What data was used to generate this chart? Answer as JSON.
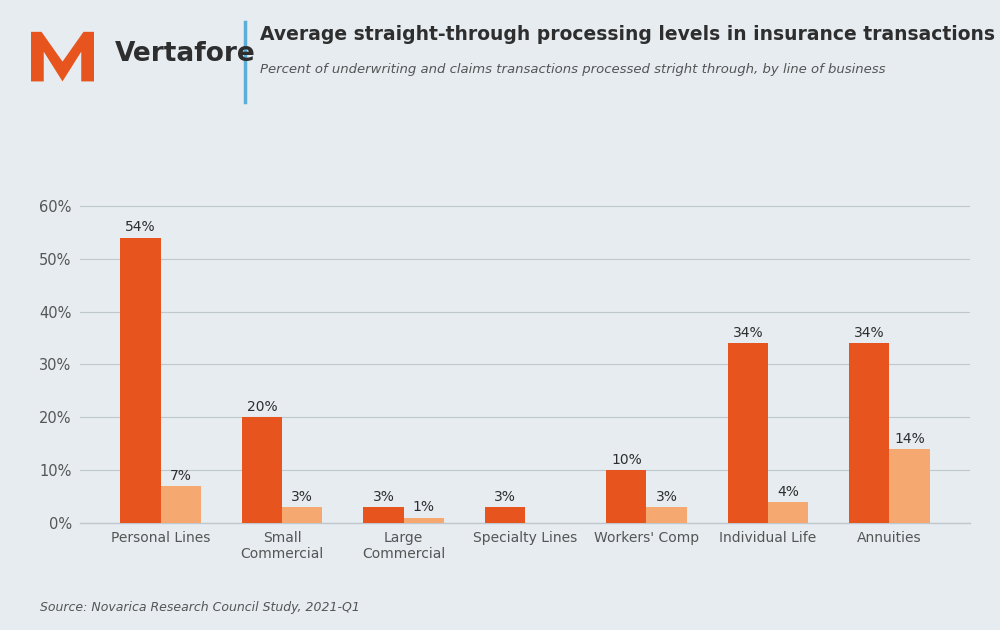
{
  "title": "Average straight-through processing levels in insurance transactions",
  "subtitle": "Percent of underwriting and claims transactions processed stright through, by line of business",
  "source": "Source: Novarica Research Council Study, 2021-Q1",
  "categories": [
    "Personal Lines",
    "Small\nCommercial",
    "Large\nCommercial",
    "Specialty Lines",
    "Workers' Comp",
    "Individual Life",
    "Annuities"
  ],
  "underwriting": [
    54,
    20,
    3,
    3,
    10,
    34,
    34
  ],
  "claims": [
    7,
    3,
    1,
    null,
    3,
    4,
    14
  ],
  "underwriting_color": "#E8541E",
  "claims_color": "#F5A870",
  "background_color": "#E6ECF0",
  "title_color": "#2E2E2E",
  "subtitle_color": "#555555",
  "tick_label_color": "#555555",
  "grid_color": "#C0C8CE",
  "ylim": [
    0,
    0.62
  ],
  "yticks": [
    0.0,
    0.1,
    0.2,
    0.3,
    0.4,
    0.5,
    0.6
  ],
  "ytick_labels": [
    "0%",
    "10%",
    "20%",
    "30%",
    "40%",
    "50%",
    "60%"
  ],
  "bar_width": 0.33,
  "brand_color": "#E8541E",
  "divider_color": "#5BAFD6"
}
